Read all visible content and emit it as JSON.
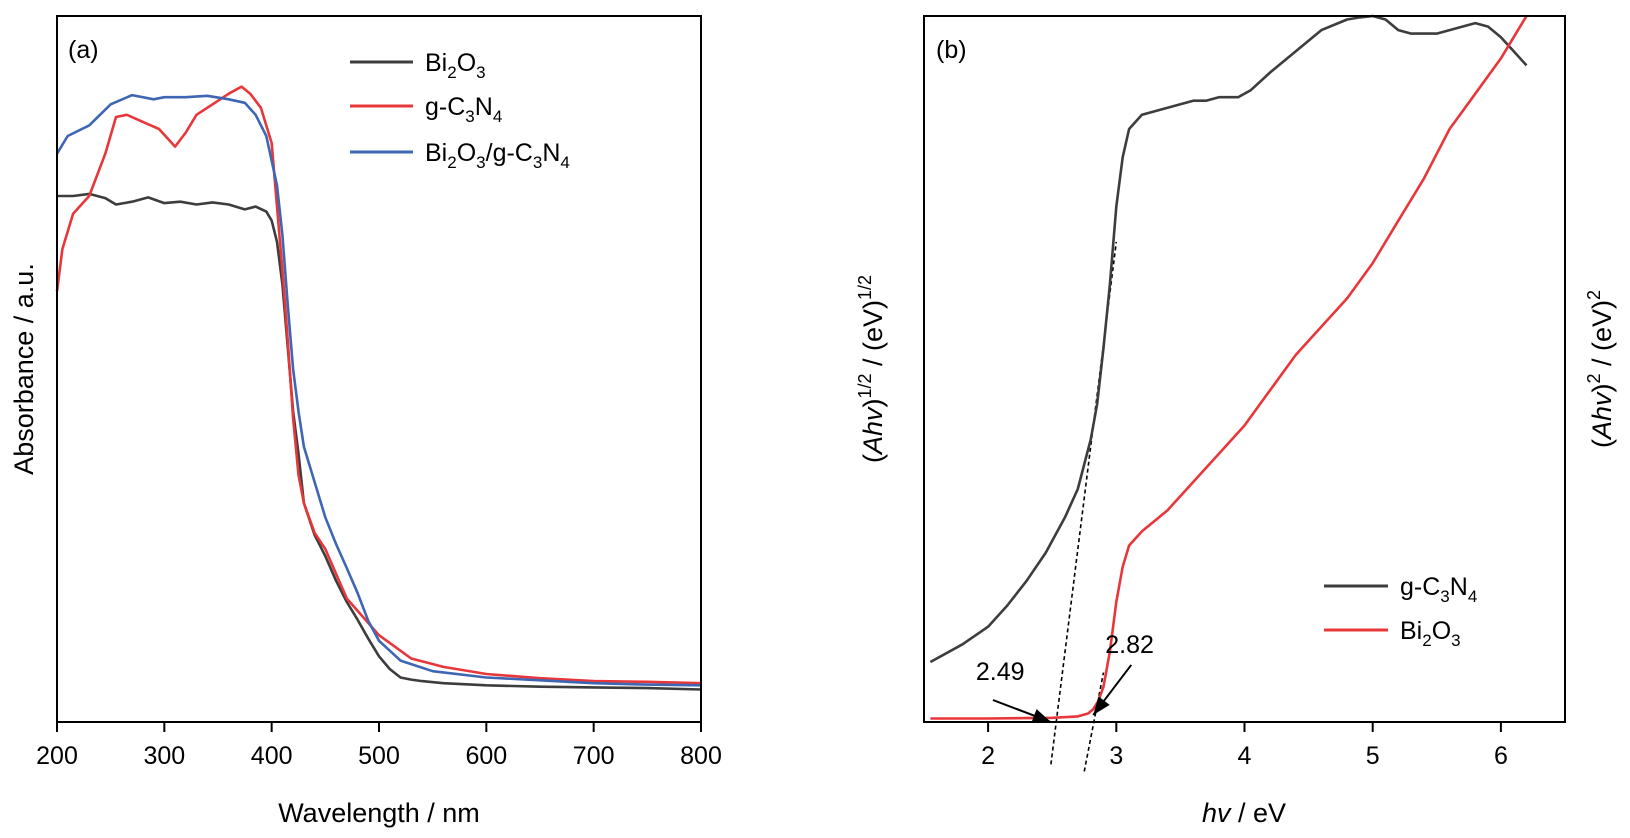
{
  "chart_data": [
    {
      "panel": "(a)",
      "type": "line",
      "xlabel": "Wavelength / nm",
      "ylabel": "Absorbance / a.u.",
      "xlim": [
        200,
        800
      ],
      "ylim": [
        0,
        1
      ],
      "x_ticks": [
        "200",
        "300",
        "400",
        "500",
        "600",
        "700",
        "800"
      ],
      "y_ticks": [],
      "legend_position": "top-center",
      "grid": false,
      "series": [
        {
          "name": "Bi2O3",
          "legend": [
            "Bi",
            "2",
            "O",
            "3",
            ""
          ],
          "color": "#3d3d3d",
          "x": [
            200,
            215,
            230,
            245,
            255,
            270,
            285,
            300,
            315,
            330,
            345,
            360,
            375,
            385,
            395,
            400,
            405,
            410,
            415,
            420,
            425,
            430,
            440,
            450,
            460,
            470,
            480,
            490,
            500,
            510,
            520,
            530,
            540,
            560,
            600,
            650,
            700,
            750,
            800
          ],
          "y": [
            0.745,
            0.745,
            0.748,
            0.742,
            0.733,
            0.737,
            0.743,
            0.735,
            0.737,
            0.733,
            0.736,
            0.733,
            0.726,
            0.73,
            0.723,
            0.71,
            0.68,
            0.62,
            0.53,
            0.44,
            0.38,
            0.31,
            0.265,
            0.235,
            0.2,
            0.17,
            0.145,
            0.118,
            0.093,
            0.075,
            0.063,
            0.06,
            0.058,
            0.055,
            0.052,
            0.05,
            0.049,
            0.048,
            0.046
          ]
        },
        {
          "name": "g-C3N4",
          "legend": [
            "g-C",
            "3",
            "N",
            "4",
            ""
          ],
          "color": "#e8373a",
          "x": [
            200,
            205,
            215,
            230,
            245,
            255,
            265,
            280,
            295,
            310,
            320,
            330,
            345,
            360,
            372,
            380,
            390,
            400,
            405,
            410,
            415,
            420,
            425,
            430,
            440,
            450,
            470,
            500,
            530,
            560,
            600,
            650,
            700,
            750,
            800
          ],
          "y": [
            0.61,
            0.67,
            0.72,
            0.745,
            0.805,
            0.857,
            0.86,
            0.85,
            0.84,
            0.815,
            0.835,
            0.86,
            0.875,
            0.89,
            0.9,
            0.89,
            0.87,
            0.82,
            0.73,
            0.64,
            0.54,
            0.43,
            0.35,
            0.31,
            0.268,
            0.245,
            0.175,
            0.123,
            0.09,
            0.078,
            0.068,
            0.062,
            0.058,
            0.057,
            0.055
          ]
        },
        {
          "name": "Bi2O3/g-C3N4",
          "legend": [
            "Bi",
            "2",
            "O",
            "3",
            "/g-C",
            "3",
            "N",
            "4",
            ""
          ],
          "color": "#3e66b3",
          "x": [
            200,
            210,
            230,
            250,
            270,
            290,
            300,
            320,
            340,
            360,
            375,
            385,
            395,
            405,
            410,
            415,
            420,
            425,
            430,
            440,
            450,
            460,
            470,
            480,
            490,
            500,
            520,
            550,
            600,
            650,
            700,
            750,
            800
          ],
          "y": [
            0.805,
            0.83,
            0.845,
            0.875,
            0.888,
            0.882,
            0.885,
            0.885,
            0.887,
            0.882,
            0.877,
            0.86,
            0.83,
            0.76,
            0.69,
            0.59,
            0.5,
            0.44,
            0.39,
            0.34,
            0.29,
            0.252,
            0.218,
            0.183,
            0.143,
            0.115,
            0.087,
            0.072,
            0.063,
            0.059,
            0.055,
            0.053,
            0.052
          ]
        }
      ]
    },
    {
      "panel": "(b)",
      "type": "line",
      "xlabel": "hv / eV",
      "ylabel_left": "(Ahv)1/2 / (eV)1/2",
      "ylabel_right": "(Ahv)2 / (eV)2",
      "xlim": [
        1.5,
        6.5
      ],
      "ylim": [
        0,
        1
      ],
      "x_ticks": [
        "2",
        "3",
        "4",
        "5",
        "6"
      ],
      "y_ticks": [],
      "legend_position": "bottom-right",
      "grid": false,
      "series": [
        {
          "name": "g-C3N4",
          "legend": [
            "g-C",
            "3",
            "N",
            "4",
            ""
          ],
          "color": "#3d3d3d",
          "x": [
            1.55,
            1.8,
            2.0,
            2.15,
            2.3,
            2.45,
            2.6,
            2.7,
            2.8,
            2.85,
            2.9,
            2.95,
            3.0,
            3.05,
            3.1,
            3.15,
            3.2,
            3.3,
            3.4,
            3.5,
            3.6,
            3.7,
            3.8,
            3.95,
            4.05,
            4.2,
            4.4,
            4.6,
            4.8,
            4.9,
            5.0,
            5.1,
            5.2,
            5.3,
            5.4,
            5.5,
            5.6,
            5.7,
            5.8,
            5.9,
            6.0,
            6.1,
            6.2
          ],
          "y": [
            0.085,
            0.11,
            0.135,
            0.165,
            0.2,
            0.24,
            0.29,
            0.33,
            0.4,
            0.45,
            0.53,
            0.62,
            0.73,
            0.8,
            0.84,
            0.85,
            0.86,
            0.865,
            0.87,
            0.875,
            0.88,
            0.88,
            0.885,
            0.885,
            0.895,
            0.92,
            0.95,
            0.98,
            0.995,
            0.998,
            1.0,
            0.995,
            0.98,
            0.975,
            0.975,
            0.975,
            0.98,
            0.985,
            0.99,
            0.985,
            0.97,
            0.95,
            0.93
          ]
        },
        {
          "name": "Bi2O3",
          "legend": [
            "Bi",
            "2",
            "O",
            "3",
            ""
          ],
          "color": "#e8373a",
          "x": [
            1.55,
            2.0,
            2.5,
            2.7,
            2.78,
            2.82,
            2.86,
            2.9,
            2.95,
            3.0,
            3.05,
            3.1,
            3.2,
            3.4,
            3.6,
            3.8,
            4.0,
            4.2,
            4.4,
            4.6,
            4.8,
            5.0,
            5.2,
            5.4,
            5.6,
            5.8,
            6.0,
            6.1,
            6.2
          ],
          "y": [
            0.005,
            0.005,
            0.006,
            0.008,
            0.012,
            0.018,
            0.03,
            0.05,
            0.1,
            0.17,
            0.22,
            0.25,
            0.27,
            0.3,
            0.34,
            0.38,
            0.42,
            0.47,
            0.52,
            0.56,
            0.6,
            0.65,
            0.71,
            0.77,
            0.84,
            0.89,
            0.94,
            0.97,
            1.0
          ]
        }
      ],
      "tangent_lines": [
        {
          "x1": 2.49,
          "y1": -0.06,
          "x2": 3.0,
          "y2": 0.68
        },
        {
          "x1": 2.75,
          "y1": -0.07,
          "x2": 2.9,
          "y2": 0.07
        }
      ],
      "annotations": [
        {
          "text": "2.49",
          "x": 2.49,
          "y": 0.0
        },
        {
          "text": "2.82",
          "x": 2.82,
          "y": 0.01
        }
      ]
    }
  ]
}
